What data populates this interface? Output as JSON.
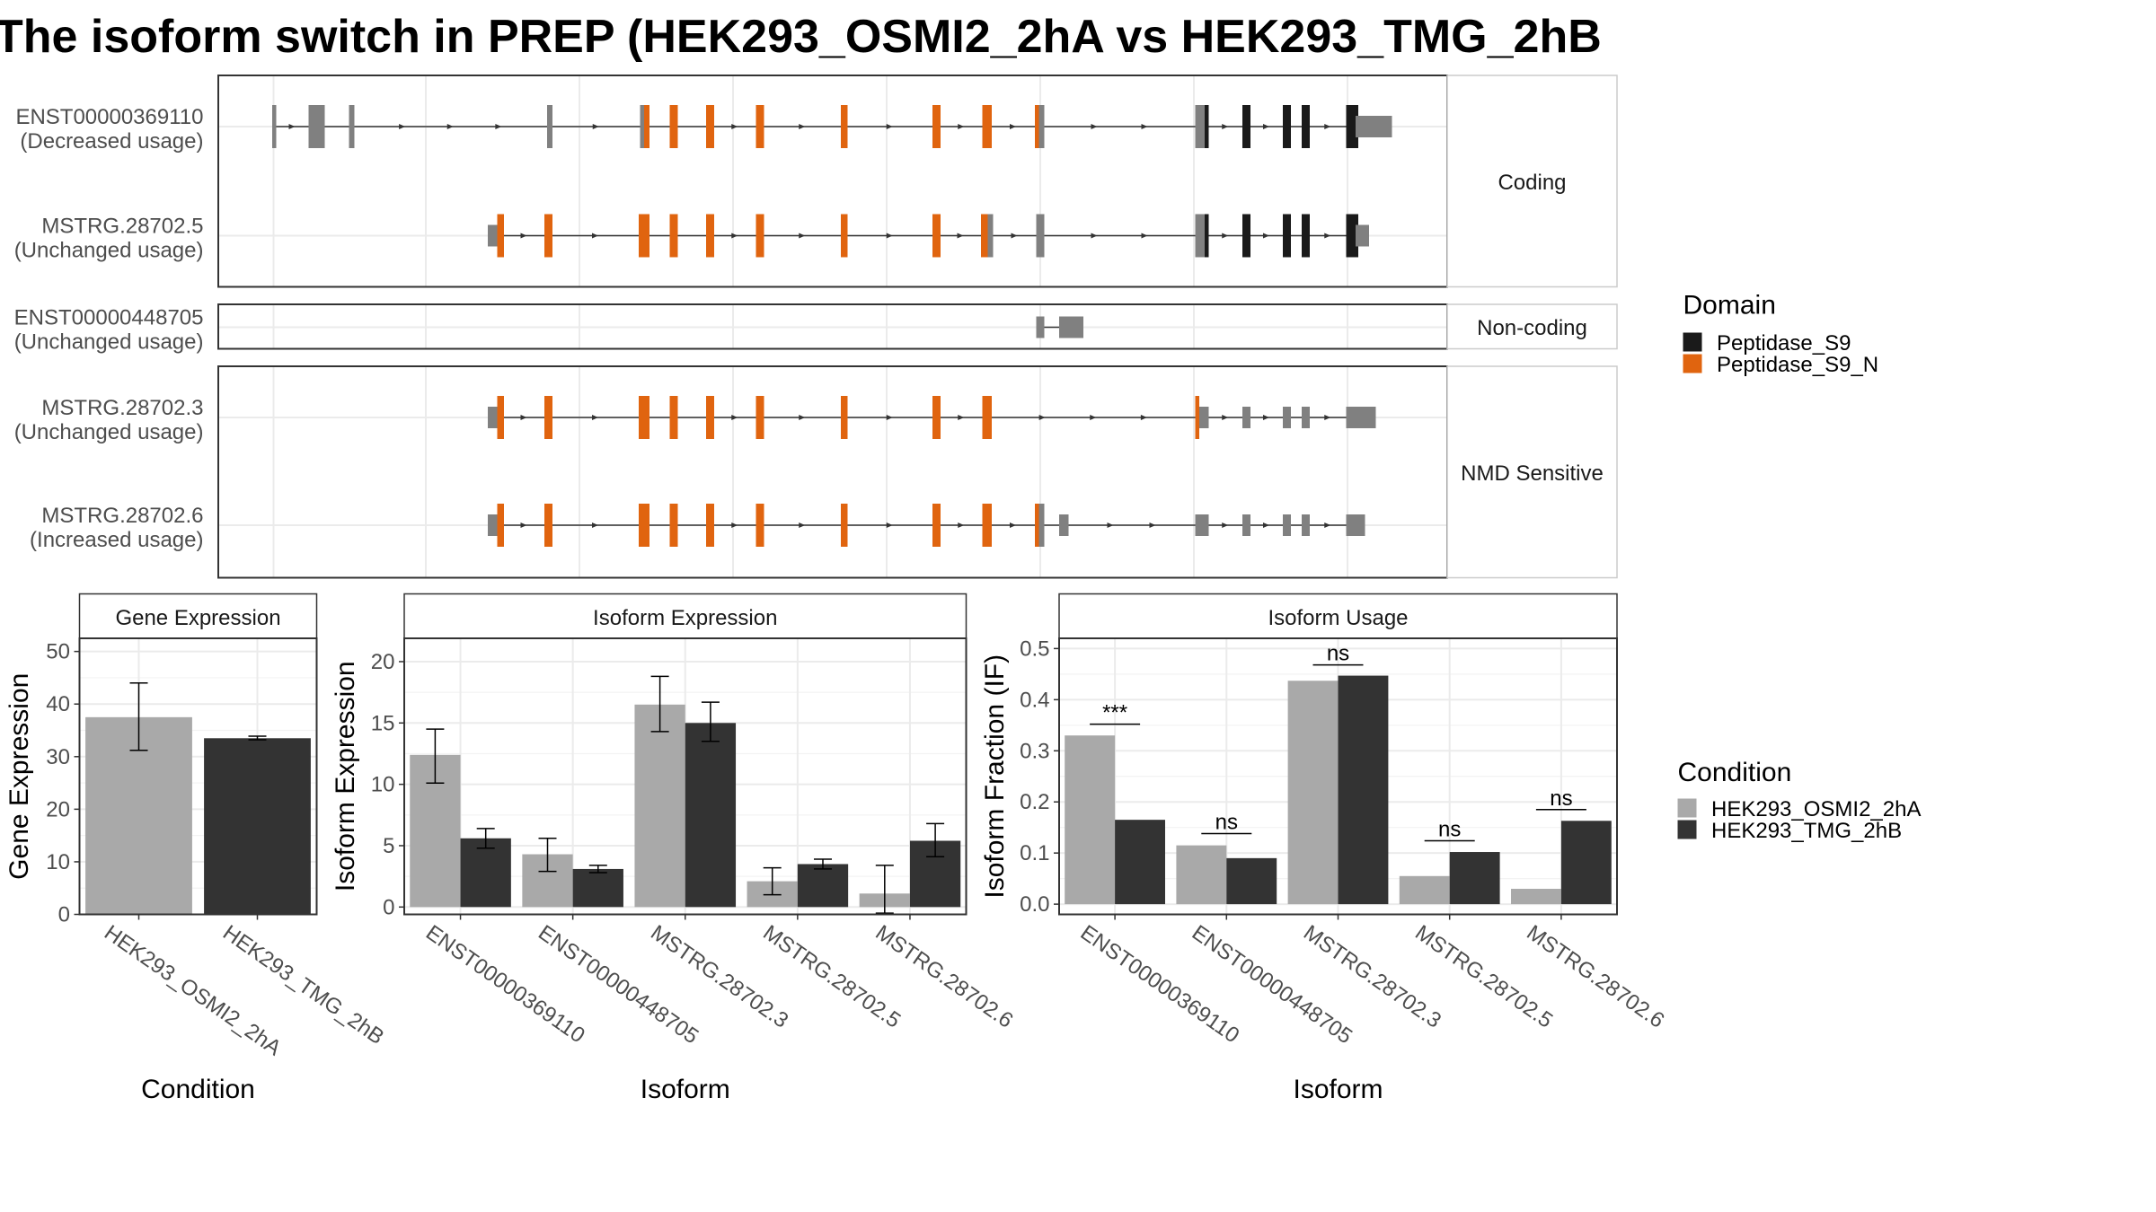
{
  "title": "The isoform switch in PREP (HEK293_OSMI2_2hA vs HEK293_TMG_2hB",
  "structure": {
    "panels": [
      {
        "label": "Coding",
        "transcripts": [
          {
            "id": "ENST00000369110",
            "usage": "(Decreased usage)",
            "start": 202,
            "end": 1033,
            "exons": [
              [
                202,
                205,
                "gray",
                "tall"
              ],
              [
                229,
                241,
                "gray",
                "tall"
              ],
              [
                259,
                263,
                "gray",
                "tall"
              ],
              [
                406,
                410,
                "gray",
                "tall"
              ],
              [
                475,
                481,
                "gray",
                "tall"
              ],
              [
                478,
                482,
                "orange",
                "tall"
              ],
              [
                497,
                503,
                "orange",
                "tall"
              ],
              [
                524,
                530,
                "orange",
                "tall"
              ],
              [
                561,
                567,
                "orange",
                "tall"
              ],
              [
                624,
                629,
                "orange",
                "tall"
              ],
              [
                692,
                698,
                "orange",
                "tall"
              ],
              [
                729,
                736,
                "orange",
                "tall"
              ],
              [
                768,
                774,
                "orange",
                "tall"
              ],
              [
                771,
                775,
                "gray",
                "tall"
              ],
              [
                887,
                897,
                "gray",
                "tall"
              ],
              [
                894,
                897,
                "black",
                "tall"
              ],
              [
                922,
                928,
                "black",
                "tall"
              ],
              [
                952,
                958,
                "black",
                "tall"
              ],
              [
                966,
                972,
                "black",
                "tall"
              ],
              [
                999,
                1008,
                "black",
                "tall"
              ],
              [
                1006,
                1033,
                "gray",
                "short"
              ]
            ]
          },
          {
            "id": "MSTRG.28702.5",
            "usage": "(Unchanged usage)",
            "start": 362,
            "end": 1016,
            "exons": [
              [
                362,
                372,
                "gray",
                "short"
              ],
              [
                369,
                374,
                "orange",
                "tall"
              ],
              [
                404,
                410,
                "orange",
                "tall"
              ],
              [
                474,
                482,
                "orange",
                "tall"
              ],
              [
                497,
                503,
                "orange",
                "tall"
              ],
              [
                524,
                530,
                "orange",
                "tall"
              ],
              [
                561,
                567,
                "orange",
                "tall"
              ],
              [
                624,
                629,
                "orange",
                "tall"
              ],
              [
                692,
                698,
                "orange",
                "tall"
              ],
              [
                728,
                737,
                "gray",
                "tall"
              ],
              [
                728,
                733,
                "orange",
                "tall"
              ],
              [
                769,
                775,
                "gray",
                "tall"
              ],
              [
                887,
                897,
                "gray",
                "tall"
              ],
              [
                894,
                897,
                "black",
                "tall"
              ],
              [
                922,
                928,
                "black",
                "tall"
              ],
              [
                952,
                958,
                "black",
                "tall"
              ],
              [
                966,
                972,
                "black",
                "tall"
              ],
              [
                999,
                1008,
                "black",
                "tall"
              ],
              [
                1006,
                1016,
                "gray",
                "short"
              ]
            ]
          }
        ]
      },
      {
        "label": "Non-coding",
        "transcripts": [
          {
            "id": "ENST00000448705",
            "usage": "(Unchanged usage)",
            "start": 769,
            "end": 804,
            "exons": [
              [
                769,
                775,
                "gray",
                "tall"
              ],
              [
                786,
                804,
                "gray",
                "tall"
              ]
            ]
          }
        ]
      },
      {
        "label": "NMD Sensitive",
        "transcripts": [
          {
            "id": "MSTRG.28702.3",
            "usage": "(Unchanged usage)",
            "start": 362,
            "end": 1021,
            "exons": [
              [
                362,
                372,
                "gray",
                "short"
              ],
              [
                369,
                374,
                "orange",
                "tall"
              ],
              [
                404,
                410,
                "orange",
                "tall"
              ],
              [
                474,
                482,
                "orange",
                "tall"
              ],
              [
                497,
                503,
                "orange",
                "tall"
              ],
              [
                524,
                530,
                "orange",
                "tall"
              ],
              [
                561,
                567,
                "orange",
                "tall"
              ],
              [
                624,
                629,
                "orange",
                "tall"
              ],
              [
                692,
                698,
                "orange",
                "tall"
              ],
              [
                729,
                736,
                "orange",
                "tall"
              ],
              [
                887,
                897,
                "gray",
                "short"
              ],
              [
                887,
                890,
                "orange",
                "tall"
              ],
              [
                922,
                928,
                "gray",
                "short"
              ],
              [
                952,
                958,
                "gray",
                "short"
              ],
              [
                966,
                972,
                "gray",
                "short"
              ],
              [
                999,
                1021,
                "gray",
                "short"
              ]
            ]
          },
          {
            "id": "MSTRG.28702.6",
            "usage": "(Increased usage)",
            "start": 362,
            "end": 1013,
            "exons": [
              [
                362,
                372,
                "gray",
                "short"
              ],
              [
                369,
                374,
                "orange",
                "tall"
              ],
              [
                404,
                410,
                "orange",
                "tall"
              ],
              [
                474,
                482,
                "orange",
                "tall"
              ],
              [
                497,
                503,
                "orange",
                "tall"
              ],
              [
                524,
                530,
                "orange",
                "tall"
              ],
              [
                561,
                567,
                "orange",
                "tall"
              ],
              [
                624,
                629,
                "orange",
                "tall"
              ],
              [
                692,
                698,
                "orange",
                "tall"
              ],
              [
                729,
                736,
                "orange",
                "tall"
              ],
              [
                768,
                774,
                "orange",
                "tall"
              ],
              [
                771,
                775,
                "gray",
                "tall"
              ],
              [
                786,
                793,
                "gray",
                "short"
              ],
              [
                887,
                897,
                "gray",
                "short"
              ],
              [
                922,
                928,
                "gray",
                "short"
              ],
              [
                952,
                958,
                "gray",
                "short"
              ],
              [
                966,
                972,
                "gray",
                "short"
              ],
              [
                999,
                1013,
                "gray",
                "short"
              ]
            ]
          }
        ]
      }
    ]
  },
  "domain_legend": {
    "title": "Domain",
    "items": [
      {
        "label": "Peptidase_S9",
        "color": "#1a1a1a"
      },
      {
        "label": "Peptidase_S9_N",
        "color": "#e0640f"
      }
    ]
  },
  "condition_legend": {
    "title": "Condition",
    "items": [
      {
        "label": "HEK293_OSMI2_2hA",
        "color": "#a9a9a9"
      },
      {
        "label": "HEK293_TMG_2hB",
        "color": "#333333"
      }
    ]
  },
  "chart_data": [
    {
      "type": "bar",
      "title": "Gene Expression",
      "xlabel": "Condition",
      "ylabel": "Gene Expression",
      "ylim": [
        0,
        52.5
      ],
      "yticks": [
        0,
        10,
        20,
        30,
        40,
        50
      ],
      "categories": [
        "HEK293_OSMI2_2hA",
        "HEK293_TMG_2hB"
      ],
      "values": [
        37.5,
        33.5
      ],
      "error_low": [
        31.2,
        33.2
      ],
      "error_high": [
        44.0,
        33.9
      ]
    },
    {
      "type": "bar",
      "title": "Isoform Expression",
      "xlabel": "Isoform",
      "ylabel": "Isoform Expression",
      "ylim": [
        -0.6,
        21.9
      ],
      "yticks": [
        0,
        5,
        10,
        15,
        20
      ],
      "categories": [
        "ENST00000369110",
        "ENST00000448705",
        "MSTRG.28702.3",
        "MSTRG.28702.5",
        "MSTRG.28702.6"
      ],
      "series": [
        {
          "name": "HEK293_OSMI2_2hA",
          "values": [
            12.4,
            4.3,
            16.5,
            2.1,
            1.1
          ],
          "error_low": [
            10.1,
            2.9,
            14.3,
            1.0,
            -0.5
          ],
          "error_high": [
            14.5,
            5.6,
            18.8,
            3.2,
            3.4
          ]
        },
        {
          "name": "HEK293_TMG_2hB",
          "values": [
            5.6,
            3.1,
            15.0,
            3.5,
            5.4
          ],
          "error_low": [
            4.8,
            2.8,
            13.5,
            3.1,
            4.1
          ],
          "error_high": [
            6.4,
            3.4,
            16.7,
            3.9,
            6.8
          ]
        }
      ]
    },
    {
      "type": "bar",
      "title": "Isoform Usage",
      "xlabel": "Isoform",
      "ylabel": "Isoform Fraction (IF)",
      "ylim": [
        -0.02,
        0.52
      ],
      "yticks": [
        0.0,
        0.1,
        0.2,
        0.3,
        0.4,
        0.5
      ],
      "ytick_labels": [
        "0.0",
        "0.1",
        "0.2",
        "0.3",
        "0.4",
        "0.5"
      ],
      "categories": [
        "ENST00000369110",
        "ENST00000448705",
        "MSTRG.28702.3",
        "MSTRG.28702.5",
        "MSTRG.28702.6"
      ],
      "series": [
        {
          "name": "HEK293_OSMI2_2hA",
          "values": [
            0.33,
            0.115,
            0.437,
            0.055,
            0.03
          ]
        },
        {
          "name": "HEK293_TMG_2hB",
          "values": [
            0.165,
            0.09,
            0.447,
            0.102,
            0.163
          ]
        }
      ],
      "significance": [
        "***",
        "ns",
        "ns",
        "ns",
        "ns"
      ],
      "significance_y": [
        0.352,
        0.138,
        0.468,
        0.124,
        0.185
      ]
    }
  ]
}
